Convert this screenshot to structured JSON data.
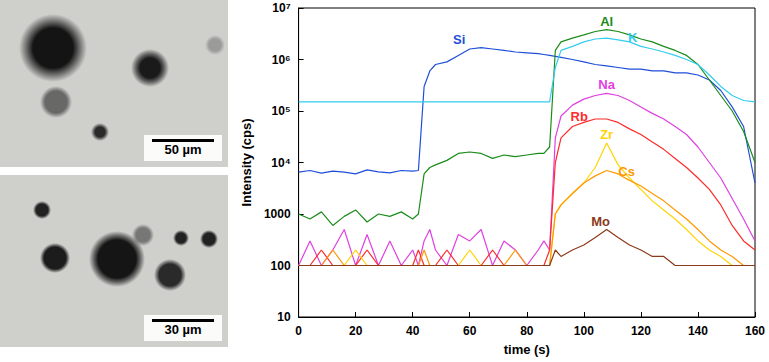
{
  "chart_data": {
    "type": "line",
    "x_label": "time (s)",
    "y_label": "Intensity (cps)",
    "log": "y",
    "grid": false,
    "xlim": [
      0,
      160
    ],
    "xticks": [
      0,
      20,
      40,
      60,
      80,
      100,
      120,
      140,
      160
    ],
    "ylim": [
      10,
      10000000
    ],
    "yticks": [
      10,
      100,
      1000,
      {
        "value": 10000,
        "label": "10⁴"
      },
      {
        "value": 100000,
        "label": "10⁵"
      },
      {
        "value": 1000000,
        "label": "10⁶"
      },
      {
        "value": 10000000,
        "label": "10⁷"
      }
    ],
    "x": [
      0,
      4,
      8,
      12,
      16,
      20,
      24,
      28,
      32,
      36,
      40,
      42,
      44,
      46,
      48,
      52,
      56,
      60,
      64,
      68,
      72,
      76,
      80,
      84,
      86,
      88,
      90,
      92,
      96,
      100,
      104,
      108,
      112,
      116,
      120,
      124,
      128,
      132,
      136,
      140,
      144,
      148,
      152,
      156,
      160
    ],
    "series": [
      {
        "name": "Si",
        "color": "#1f4fd8",
        "values": [
          6500,
          7000,
          6200,
          6800,
          6500,
          6000,
          7200,
          6600,
          6300,
          7000,
          6800,
          7000,
          300000,
          600000,
          800000,
          900000,
          1200000,
          1600000,
          1700000,
          1600000,
          1500000,
          1400000,
          1350000,
          1300000,
          1250000,
          1200000,
          1150000,
          1100000,
          1000000,
          900000,
          800000,
          750000,
          700000,
          650000,
          650000,
          600000,
          600000,
          550000,
          550000,
          500000,
          400000,
          250000,
          120000,
          50000,
          4000
        ]
      },
      {
        "name": "Al",
        "color": "#1a8c1a",
        "values": [
          1000,
          800,
          1100,
          600,
          900,
          1200,
          700,
          1000,
          900,
          1100,
          800,
          1000,
          6000,
          8000,
          9000,
          11000,
          15000,
          16000,
          15000,
          12000,
          14000,
          13000,
          14000,
          15000,
          15000,
          20000,
          1500000,
          2200000,
          2600000,
          3000000,
          3500000,
          3800000,
          3500000,
          3000000,
          2500000,
          2200000,
          1800000,
          1500000,
          1200000,
          800000,
          400000,
          200000,
          100000,
          40000,
          10000
        ]
      },
      {
        "name": "K",
        "color": "#33ccee",
        "values": [
          150000,
          150000,
          150000,
          150000,
          150000,
          150000,
          150000,
          150000,
          150000,
          150000,
          150000,
          150000,
          150000,
          150000,
          150000,
          150000,
          150000,
          150000,
          150000,
          150000,
          150000,
          150000,
          150000,
          150000,
          150000,
          150000,
          700000,
          1500000,
          1800000,
          2200000,
          2500000,
          2600000,
          2400000,
          2200000,
          1800000,
          1600000,
          1400000,
          1200000,
          1000000,
          800000,
          500000,
          300000,
          200000,
          160000,
          150000
        ]
      },
      {
        "name": "Na",
        "color": "#e040e0",
        "values": [
          100,
          300,
          100,
          200,
          500,
          100,
          400,
          100,
          300,
          100,
          200,
          100,
          300,
          500,
          200,
          100,
          400,
          300,
          500,
          100,
          300,
          200,
          100,
          200,
          300,
          200,
          30000,
          80000,
          130000,
          170000,
          200000,
          220000,
          200000,
          160000,
          120000,
          90000,
          70000,
          50000,
          35000,
          20000,
          10000,
          5000,
          2000,
          800,
          300
        ]
      },
      {
        "name": "Rb",
        "color": "#ff2a2a",
        "values": [
          100,
          100,
          200,
          100,
          100,
          100,
          200,
          100,
          100,
          100,
          100,
          200,
          100,
          100,
          100,
          200,
          100,
          100,
          100,
          200,
          100,
          100,
          100,
          100,
          100,
          200,
          10000,
          30000,
          50000,
          60000,
          70000,
          70000,
          60000,
          45000,
          35000,
          25000,
          18000,
          12000,
          8000,
          5000,
          3000,
          1500,
          600,
          300,
          200
        ]
      },
      {
        "name": "Zr",
        "color": "#ffd400",
        "values": [
          100,
          100,
          100,
          100,
          100,
          200,
          100,
          100,
          100,
          100,
          100,
          100,
          100,
          100,
          100,
          100,
          100,
          200,
          100,
          100,
          100,
          100,
          100,
          100,
          100,
          100,
          1000,
          1500,
          2500,
          4000,
          8000,
          24000,
          9000,
          5000,
          3000,
          1800,
          1200,
          800,
          500,
          300,
          200,
          150,
          100,
          100,
          100
        ]
      },
      {
        "name": "Cs",
        "color": "#ff9900",
        "values": [
          100,
          100,
          100,
          200,
          100,
          100,
          100,
          100,
          100,
          100,
          100,
          100,
          200,
          100,
          100,
          100,
          100,
          100,
          100,
          100,
          100,
          200,
          100,
          100,
          100,
          100,
          1000,
          1500,
          2500,
          4000,
          5500,
          7000,
          6000,
          4500,
          3500,
          2500,
          1800,
          1200,
          800,
          500,
          300,
          200,
          150,
          100,
          100
        ]
      },
      {
        "name": "Mo",
        "color": "#8b3a1a",
        "values": [
          100,
          100,
          100,
          100,
          100,
          100,
          100,
          100,
          100,
          100,
          100,
          100,
          100,
          100,
          100,
          100,
          100,
          100,
          100,
          100,
          100,
          100,
          100,
          100,
          100,
          100,
          200,
          150,
          200,
          250,
          350,
          500,
          350,
          250,
          200,
          150,
          150,
          100,
          100,
          100,
          100,
          100,
          100,
          100,
          100
        ]
      }
    ]
  },
  "micrographs": [
    {
      "scale_bar": "50 µm"
    },
    {
      "scale_bar": "30 µm"
    }
  ]
}
